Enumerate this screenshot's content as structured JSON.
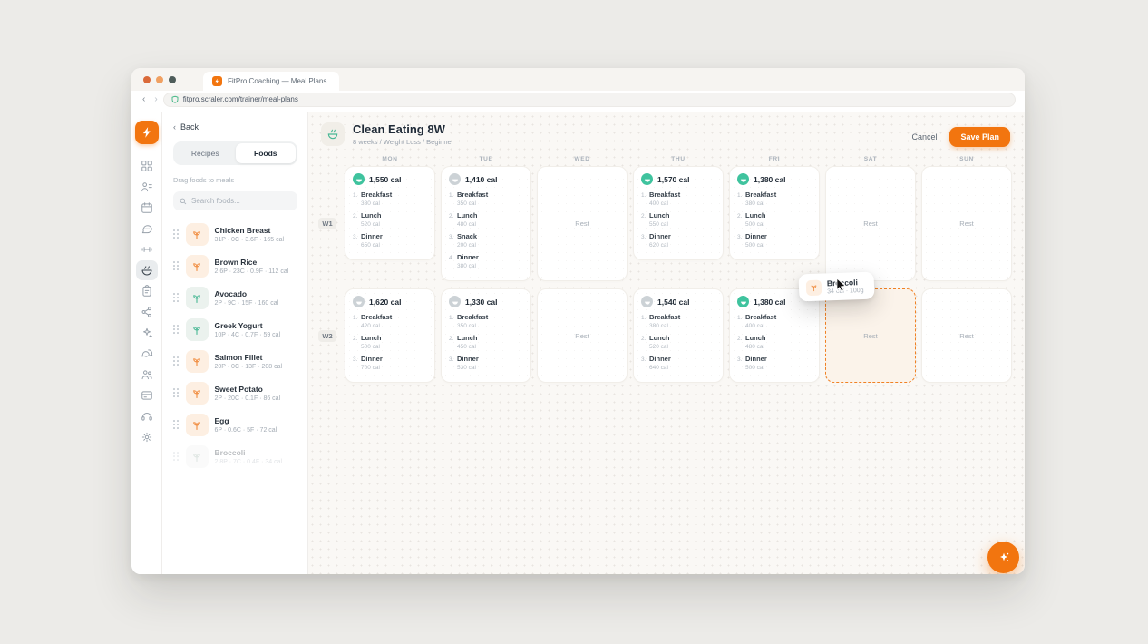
{
  "browser": {
    "tab_title": "FitPro Coaching — Meal Plans",
    "url": "fitpro.scraler.com/trainer/meal-plans"
  },
  "colors": {
    "accent": "#f2750f",
    "green": "#3fc39e"
  },
  "nav_rail": {
    "items": [
      {
        "id": "dashboard",
        "icon": "grid",
        "active": false
      },
      {
        "id": "clients",
        "icon": "clients",
        "active": false
      },
      {
        "id": "calendar",
        "icon": "calendar",
        "active": false
      },
      {
        "id": "chat",
        "icon": "chat",
        "active": false
      },
      {
        "id": "workouts",
        "icon": "dumbbell",
        "active": false
      },
      {
        "id": "meal-plans",
        "icon": "bowl",
        "active": true
      },
      {
        "id": "clipboard",
        "icon": "clipboard",
        "active": false
      },
      {
        "id": "integrations",
        "icon": "nodes",
        "active": false
      },
      {
        "id": "ai-tools",
        "icon": "sparkles",
        "active": false
      },
      {
        "id": "messages",
        "icon": "bubbles",
        "active": false
      },
      {
        "id": "community",
        "icon": "people",
        "active": false
      },
      {
        "id": "billing",
        "icon": "card",
        "active": false
      },
      {
        "id": "support",
        "icon": "headset",
        "active": false
      },
      {
        "id": "settings",
        "icon": "gear",
        "active": false
      }
    ]
  },
  "foods_panel": {
    "back_label": "Back",
    "tabs": [
      {
        "label": "Recipes",
        "active": false
      },
      {
        "label": "Foods",
        "active": true
      }
    ],
    "hint": "Drag foods to meals",
    "search_placeholder": "Search foods...",
    "foods": [
      {
        "name": "Chicken Breast",
        "macros": "31P · 0C · 3.6F · 165 cal",
        "tint": "orange",
        "ghost": false
      },
      {
        "name": "Brown Rice",
        "macros": "2.6P · 23C · 0.9F · 112 cal",
        "tint": "orange",
        "ghost": false
      },
      {
        "name": "Avocado",
        "macros": "2P · 9C · 15F · 160 cal",
        "tint": "green",
        "ghost": false
      },
      {
        "name": "Greek Yogurt",
        "macros": "10P · 4C · 0.7F · 59 cal",
        "tint": "green",
        "ghost": false
      },
      {
        "name": "Salmon Fillet",
        "macros": "20P · 0C · 13F · 208 cal",
        "tint": "orange",
        "ghost": false
      },
      {
        "name": "Sweet Potato",
        "macros": "2P · 20C · 0.1F · 86 cal",
        "tint": "orange",
        "ghost": false
      },
      {
        "name": "Egg",
        "macros": "6P · 0.6C · 5F · 72 cal",
        "tint": "orange",
        "ghost": false
      },
      {
        "name": "Broccoli",
        "macros": "2.8P · 7C · 0.4F · 34 cal",
        "tint": "ghost",
        "ghost": true
      }
    ]
  },
  "plan": {
    "title": "Clean Eating 8W",
    "subtitle": "8 weeks / Weight Loss / Beginner",
    "cancel_label": "Cancel",
    "save_label": "Save Plan",
    "rest_label": "Rest",
    "days": [
      "MON",
      "TUE",
      "WED",
      "THU",
      "FRI",
      "SAT",
      "SUN"
    ],
    "weeks": [
      {
        "label": "W1",
        "cells": [
          {
            "type": "meals",
            "total": "1,550 cal",
            "icon": "green",
            "meals": [
              {
                "idx": "1.",
                "name": "Breakfast",
                "cal": "380 cal"
              },
              {
                "idx": "2.",
                "name": "Lunch",
                "cal": "520 cal"
              },
              {
                "idx": "3.",
                "name": "Dinner",
                "cal": "650 cal"
              }
            ]
          },
          {
            "type": "meals",
            "total": "1,410 cal",
            "icon": "gray",
            "meals": [
              {
                "idx": "1.",
                "name": "Breakfast",
                "cal": "350 cal"
              },
              {
                "idx": "2.",
                "name": "Lunch",
                "cal": "480 cal"
              },
              {
                "idx": "3.",
                "name": "Snack",
                "cal": "200 cal"
              },
              {
                "idx": "4.",
                "name": "Dinner",
                "cal": "380 cal"
              }
            ]
          },
          {
            "type": "rest"
          },
          {
            "type": "meals",
            "total": "1,570 cal",
            "icon": "green",
            "meals": [
              {
                "idx": "1.",
                "name": "Breakfast",
                "cal": "400 cal"
              },
              {
                "idx": "2.",
                "name": "Lunch",
                "cal": "550 cal"
              },
              {
                "idx": "3.",
                "name": "Dinner",
                "cal": "620 cal"
              }
            ]
          },
          {
            "type": "meals",
            "total": "1,380 cal",
            "icon": "green",
            "meals": [
              {
                "idx": "1.",
                "name": "Breakfast",
                "cal": "380 cal"
              },
              {
                "idx": "2.",
                "name": "Lunch",
                "cal": "500 cal"
              },
              {
                "idx": "3.",
                "name": "Dinner",
                "cal": "500 cal"
              }
            ]
          },
          {
            "type": "rest"
          },
          {
            "type": "rest"
          }
        ]
      },
      {
        "label": "W2",
        "cells": [
          {
            "type": "meals",
            "total": "1,620 cal",
            "icon": "gray",
            "meals": [
              {
                "idx": "1.",
                "name": "Breakfast",
                "cal": "420 cal"
              },
              {
                "idx": "2.",
                "name": "Lunch",
                "cal": "500 cal"
              },
              {
                "idx": "3.",
                "name": "Dinner",
                "cal": "700 cal"
              }
            ]
          },
          {
            "type": "meals",
            "total": "1,330 cal",
            "icon": "gray",
            "meals": [
              {
                "idx": "1.",
                "name": "Breakfast",
                "cal": "350 cal"
              },
              {
                "idx": "2.",
                "name": "Lunch",
                "cal": "450 cal"
              },
              {
                "idx": "3.",
                "name": "Dinner",
                "cal": "530 cal"
              }
            ]
          },
          {
            "type": "rest"
          },
          {
            "type": "meals",
            "total": "1,540 cal",
            "icon": "gray",
            "meals": [
              {
                "idx": "1.",
                "name": "Breakfast",
                "cal": "380 cal"
              },
              {
                "idx": "2.",
                "name": "Lunch",
                "cal": "520 cal"
              },
              {
                "idx": "3.",
                "name": "Dinner",
                "cal": "640 cal"
              }
            ]
          },
          {
            "type": "meals",
            "total": "1,380 cal",
            "icon": "green",
            "meals": [
              {
                "idx": "1.",
                "name": "Breakfast",
                "cal": "400 cal"
              },
              {
                "idx": "2.",
                "name": "Lunch",
                "cal": "480 cal"
              },
              {
                "idx": "3.",
                "name": "Dinner",
                "cal": "500 cal"
              }
            ]
          },
          {
            "type": "drop"
          },
          {
            "type": "rest"
          }
        ]
      }
    ],
    "drag_chip": {
      "name": "Broccoli",
      "detail": "34 cal · 100g"
    }
  }
}
